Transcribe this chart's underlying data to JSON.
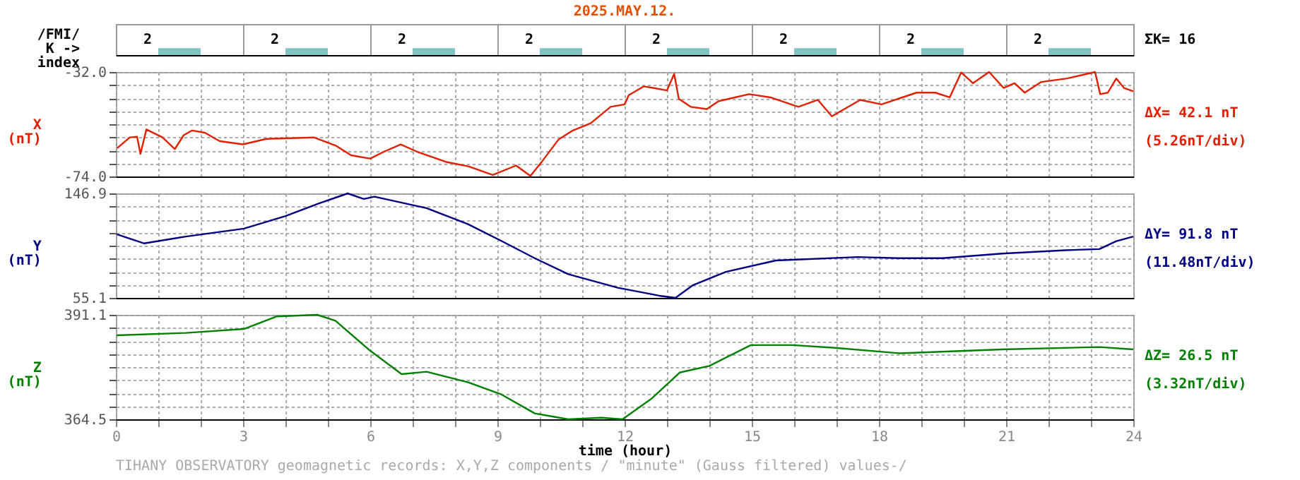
{
  "chart_data": [
    {
      "type": "bar",
      "title": "2025.MAY.12.",
      "ylabel": "/FMI/\nK ->\nindex",
      "annotations": [
        "ΣK= 16"
      ],
      "categories": [
        null,
        null,
        null,
        null,
        null,
        null,
        null,
        null
      ],
      "values": [
        2,
        2,
        2,
        2,
        2,
        2,
        2,
        2
      ],
      "color": "#80c4c4",
      "data_labels": true,
      "ylim": [
        0,
        9
      ],
      "grid": "x",
      "tick_labels": false
    },
    {
      "type": "line",
      "ylabel": "X\n(nT)",
      "annotations": [
        "ΔX= 42.1 nT",
        "(5.26nT/div)"
      ],
      "xlim": [
        0,
        24
      ],
      "ylim": [
        -74,
        -32
      ],
      "xticks": [
        0,
        1,
        2,
        3,
        4,
        5,
        6,
        7,
        8,
        9,
        10,
        11,
        12,
        13,
        14,
        15,
        16,
        17,
        18,
        19,
        20,
        21,
        22,
        23,
        24
      ],
      "yticks": [
        {
          "value": -74,
          "label": "-74.0"
        },
        {
          "value": -68.75,
          "label": null
        },
        {
          "value": -63.5,
          "label": null
        },
        {
          "value": -58.25,
          "label": null
        },
        {
          "value": -53,
          "label": null
        },
        {
          "value": -47.75,
          "label": null
        },
        {
          "value": -42.5,
          "label": null
        },
        {
          "value": -37.25,
          "label": null
        },
        {
          "value": -32,
          "label": "-32.0"
        }
      ],
      "grid": true,
      "tick_labels": "y",
      "x": [
        0.03,
        0.33,
        0.5,
        0.58,
        0.72,
        1.1,
        1.39,
        1.6,
        1.8,
        2.1,
        2.45,
        3,
        3.55,
        4.67,
        5.2,
        5.55,
        6,
        6.33,
        6.72,
        7.1,
        7.78,
        8.33,
        8.89,
        9.44,
        9.78,
        10.06,
        10.44,
        10.78,
        11.2,
        11.67,
        12,
        12.1,
        12.45,
        12.67,
        13,
        13.17,
        13.28,
        13.56,
        13.94,
        14.22,
        14.94,
        15.44,
        16.1,
        16.56,
        16.89,
        17.56,
        18.06,
        18.89,
        19.33,
        19.67,
        19.94,
        20.22,
        20.6,
        20.94,
        21.2,
        21.44,
        21.83,
        22.44,
        23.1,
        23.22,
        23.4,
        23.6,
        23.78,
        24
      ],
      "series": [
        {
          "color": "#e02000",
          "values": [
            -62.6,
            -58.3,
            -58,
            -64.9,
            -55.1,
            -58.3,
            -63,
            -57.4,
            -55.5,
            -56.4,
            -59.8,
            -61.1,
            -58.9,
            -58.3,
            -61.7,
            -65.5,
            -66.8,
            -64,
            -61.1,
            -64,
            -68.1,
            -70,
            -73.4,
            -69.6,
            -73.8,
            -67.8,
            -59.2,
            -55.5,
            -52.6,
            -46,
            -45,
            -41.3,
            -37.8,
            -38.4,
            -39.4,
            -32.8,
            -42.8,
            -46,
            -46.9,
            -43.7,
            -40.9,
            -42.2,
            -46,
            -43.2,
            -49.8,
            -43.2,
            -45,
            -40.3,
            -40.3,
            -42.2,
            -32.2,
            -36.5,
            -32,
            -38.4,
            -36.5,
            -40.3,
            -36,
            -34.6,
            -32,
            -40.9,
            -40.3,
            -34.6,
            -38.4,
            -39.8
          ]
        }
      ]
    },
    {
      "type": "line",
      "ylabel": "Y\n(nT)",
      "annotations": [
        "ΔY= 91.8 nT",
        "(11.48nT/div)"
      ],
      "xlim": [
        0,
        24
      ],
      "ylim": [
        55.1,
        146.9
      ],
      "xticks": [
        0,
        1,
        2,
        3,
        4,
        5,
        6,
        7,
        8,
        9,
        10,
        11,
        12,
        13,
        14,
        15,
        16,
        17,
        18,
        19,
        20,
        21,
        22,
        23,
        24
      ],
      "yticks": [
        {
          "value": 55.1,
          "label": "55.1"
        },
        {
          "value": 66.58,
          "label": null
        },
        {
          "value": 78.05,
          "label": null
        },
        {
          "value": 89.53,
          "label": null
        },
        {
          "value": 101,
          "label": null
        },
        {
          "value": 112.48,
          "label": null
        },
        {
          "value": 123.95,
          "label": null
        },
        {
          "value": 135.43,
          "label": null
        },
        {
          "value": 146.9,
          "label": "146.9"
        }
      ],
      "grid": true,
      "tick_labels": "y",
      "x": [
        0.02,
        0.67,
        1.65,
        3.02,
        4,
        4.78,
        5.47,
        5.85,
        6.1,
        7.33,
        8.3,
        9.1,
        9.88,
        10.67,
        11.84,
        12.82,
        13.2,
        13.6,
        14.39,
        15.57,
        17.5,
        18.5,
        19.5,
        20.9,
        22.4,
        23.2,
        23.6,
        24
      ],
      "series": [
        {
          "color": "#000080",
          "values": [
            111,
            103,
            109,
            116,
            127,
            138,
            146.9,
            142,
            144,
            134,
            120,
            105,
            90,
            76,
            64,
            57,
            55.1,
            66,
            78,
            88,
            91,
            90,
            90,
            94,
            97,
            98,
            105,
            109
          ]
        }
      ]
    },
    {
      "type": "line",
      "ylabel": "Z\n(nT)",
      "xlabel": "time (hour)",
      "annotations": [
        "ΔZ= 26.5 nT",
        "(3.32nT/div)",
        "TIHANY OBSERVATORY   geomagnetic records:  X,Y,Z  components    / \"minute\" (Gauss filtered) values-/"
      ],
      "xlim": [
        0,
        24
      ],
      "ylim": [
        364.5,
        391.1
      ],
      "xticks": [
        {
          "value": 0,
          "label": "0"
        },
        {
          "value": 1,
          "label": null
        },
        {
          "value": 2,
          "label": null
        },
        {
          "value": 3,
          "label": "3"
        },
        {
          "value": 4,
          "label": null
        },
        {
          "value": 5,
          "label": null
        },
        {
          "value": 6,
          "label": "6"
        },
        {
          "value": 7,
          "label": null
        },
        {
          "value": 8,
          "label": null
        },
        {
          "value": 9,
          "label": "9"
        },
        {
          "value": 10,
          "label": null
        },
        {
          "value": 11,
          "label": null
        },
        {
          "value": 12,
          "label": "12"
        },
        {
          "value": 13,
          "label": null
        },
        {
          "value": 14,
          "label": null
        },
        {
          "value": 15,
          "label": "15"
        },
        {
          "value": 16,
          "label": null
        },
        {
          "value": 17,
          "label": null
        },
        {
          "value": 18,
          "label": "18"
        },
        {
          "value": 19,
          "label": null
        },
        {
          "value": 20,
          "label": null
        },
        {
          "value": 21,
          "label": "21"
        },
        {
          "value": 22,
          "label": null
        },
        {
          "value": 23,
          "label": null
        },
        {
          "value": 24,
          "label": "24"
        }
      ],
      "yticks": [
        {
          "value": 364.5,
          "label": "364.5"
        },
        {
          "value": 367.83,
          "label": null
        },
        {
          "value": 371.15,
          "label": null
        },
        {
          "value": 374.48,
          "label": null
        },
        {
          "value": 377.8,
          "label": null
        },
        {
          "value": 381.13,
          "label": null
        },
        {
          "value": 384.45,
          "label": null
        },
        {
          "value": 387.78,
          "label": null
        },
        {
          "value": 391.1,
          "label": "391.1"
        }
      ],
      "grid": true,
      "x": [
        0.02,
        1.65,
        3.02,
        3.8,
        4.75,
        5.18,
        5.96,
        6.74,
        7.33,
        8.31,
        9.1,
        9.88,
        10.67,
        11.45,
        11.95,
        12.63,
        13.3,
        14,
        14.98,
        15.96,
        16.96,
        18.5,
        20.9,
        23.2,
        24
      ],
      "series": [
        {
          "color": "#008000",
          "values": [
            385.9,
            386.5,
            387.5,
            390.7,
            391.1,
            389.6,
            382.3,
            376,
            376.6,
            373.9,
            370.8,
            366,
            364.5,
            364.9,
            364.5,
            369.7,
            376.4,
            378.1,
            383.4,
            383.4,
            382.7,
            381.3,
            382.3,
            382.9,
            382.3
          ]
        }
      ]
    }
  ]
}
